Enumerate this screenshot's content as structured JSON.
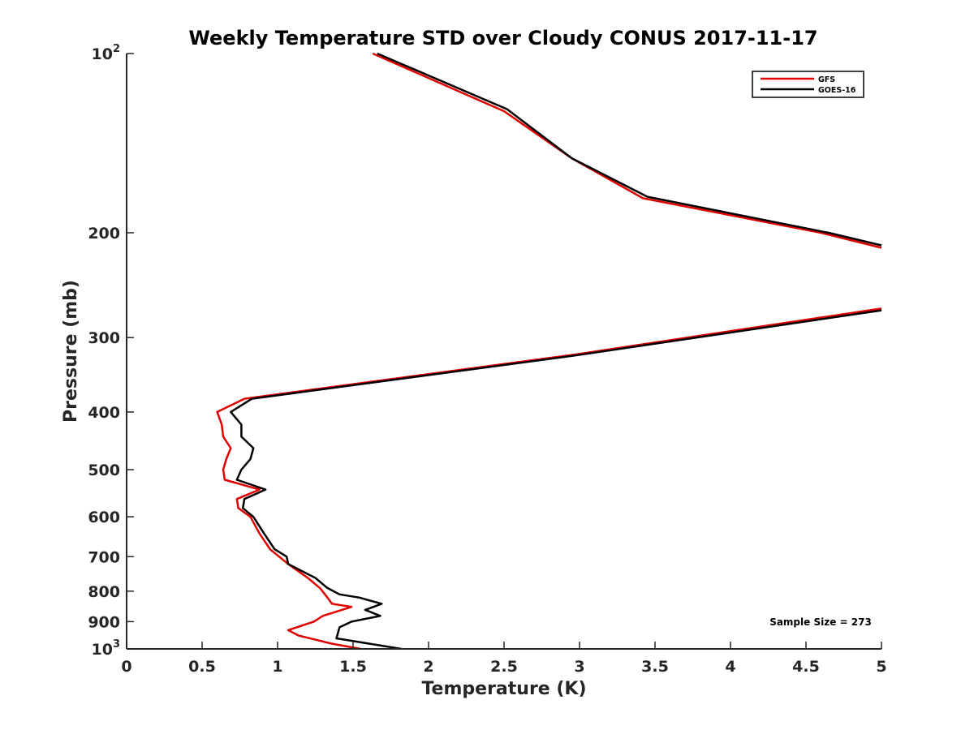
{
  "chart_data": {
    "type": "line",
    "title": "Weekly Temperature STD over Cloudy CONUS 2017-11-17",
    "xlabel": "Temperature (K)",
    "ylabel": "Pressure (mb)",
    "xlim": [
      0,
      5
    ],
    "ylim": [
      100,
      1000
    ],
    "y_scale": "log",
    "y_reversed": true,
    "grid": false,
    "legend_position": "top-right",
    "x_ticks": [
      "0",
      "0.5",
      "1",
      "1.5",
      "2",
      "2.5",
      "3",
      "3.5",
      "4",
      "4.5",
      "5"
    ],
    "y_ticks": [
      {
        "value": 100,
        "base": "10",
        "exp": "2"
      },
      {
        "value": 200,
        "label": "200"
      },
      {
        "value": 300,
        "label": "300"
      },
      {
        "value": 400,
        "label": "400"
      },
      {
        "value": 500,
        "label": "500"
      },
      {
        "value": 600,
        "label": "600"
      },
      {
        "value": 700,
        "label": "700"
      },
      {
        "value": 800,
        "label": "800"
      },
      {
        "value": 900,
        "label": "900"
      },
      {
        "value": 1000,
        "base": "10",
        "exp": "3"
      }
    ],
    "series": [
      {
        "name": "GFS",
        "color": "#e00000",
        "points": [
          [
            1.63,
            100
          ],
          [
            2.5,
            125
          ],
          [
            2.95,
            150
          ],
          [
            3.42,
            175
          ],
          [
            4.6,
            200
          ],
          [
            5.0,
            212
          ],
          [
            null,
            null
          ],
          [
            5.0,
            268
          ],
          [
            2.98,
            320
          ],
          [
            0.78,
            380
          ],
          [
            0.6,
            400
          ],
          [
            0.63,
            420
          ],
          [
            0.64,
            440
          ],
          [
            0.69,
            460
          ],
          [
            0.66,
            480
          ],
          [
            0.64,
            500
          ],
          [
            0.65,
            520
          ],
          [
            0.88,
            540
          ],
          [
            0.73,
            560
          ],
          [
            0.74,
            580
          ],
          [
            0.82,
            600
          ],
          [
            0.88,
            640
          ],
          [
            0.95,
            680
          ],
          [
            1.07,
            720
          ],
          [
            1.2,
            760
          ],
          [
            1.28,
            790
          ],
          [
            1.33,
            820
          ],
          [
            1.36,
            840
          ],
          [
            1.49,
            850
          ],
          [
            1.3,
            880
          ],
          [
            1.24,
            900
          ],
          [
            1.07,
            930
          ],
          [
            1.14,
            950
          ],
          [
            1.36,
            980
          ],
          [
            1.55,
            1000
          ]
        ]
      },
      {
        "name": "GOES-16",
        "color": "#000000",
        "points": [
          [
            1.66,
            100
          ],
          [
            2.52,
            124
          ],
          [
            2.95,
            150
          ],
          [
            3.45,
            174
          ],
          [
            4.65,
            200
          ],
          [
            5.0,
            210
          ],
          [
            null,
            null
          ],
          [
            5.0,
            270
          ],
          [
            2.95,
            322
          ],
          [
            0.83,
            380
          ],
          [
            0.69,
            400
          ],
          [
            0.76,
            420
          ],
          [
            0.76,
            440
          ],
          [
            0.84,
            460
          ],
          [
            0.82,
            480
          ],
          [
            0.76,
            500
          ],
          [
            0.73,
            520
          ],
          [
            0.92,
            540
          ],
          [
            0.78,
            560
          ],
          [
            0.77,
            580
          ],
          [
            0.84,
            600
          ],
          [
            0.91,
            640
          ],
          [
            0.98,
            680
          ],
          [
            1.06,
            700
          ],
          [
            1.07,
            720
          ],
          [
            1.25,
            760
          ],
          [
            1.33,
            790
          ],
          [
            1.41,
            810
          ],
          [
            1.54,
            820
          ],
          [
            1.69,
            840
          ],
          [
            1.58,
            860
          ],
          [
            1.68,
            880
          ],
          [
            1.49,
            900
          ],
          [
            1.41,
            920
          ],
          [
            1.39,
            960
          ],
          [
            1.82,
            1000
          ]
        ]
      }
    ],
    "annotation": "Sample Size = 273"
  }
}
